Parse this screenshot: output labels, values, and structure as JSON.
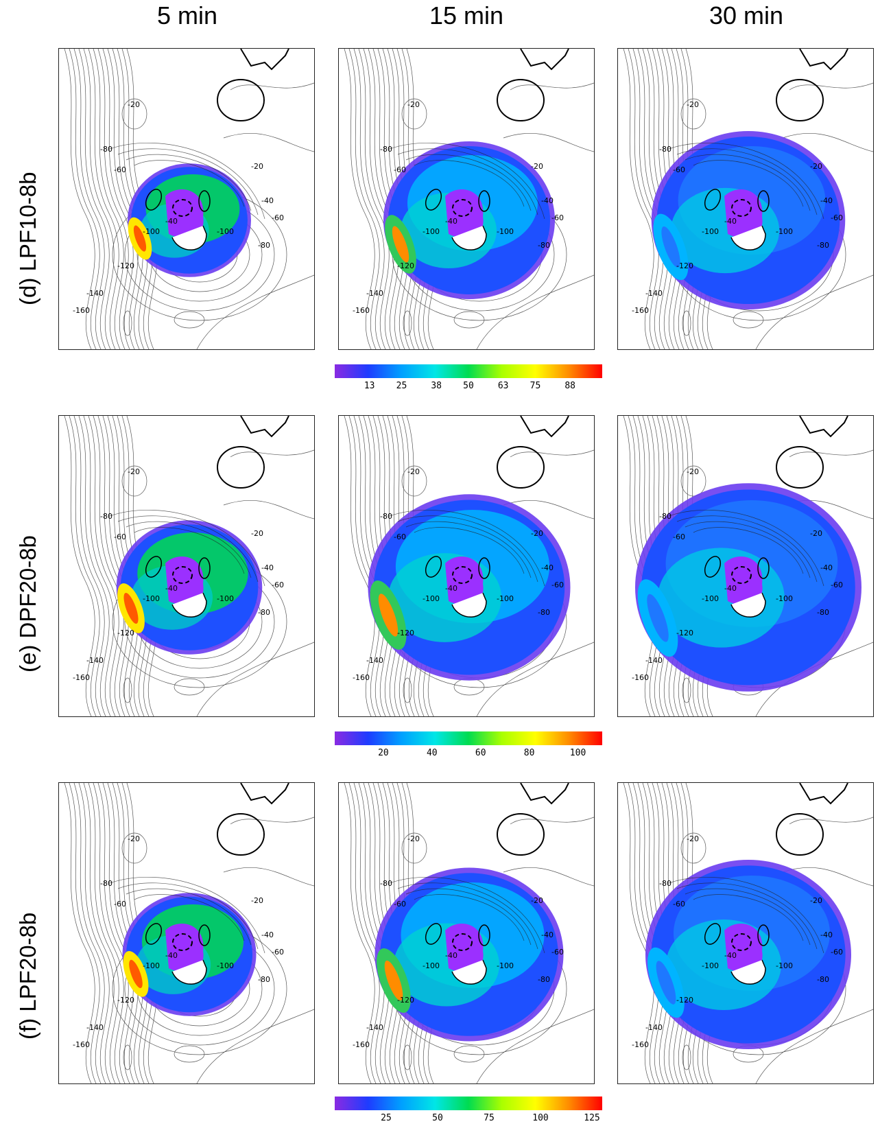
{
  "columns": [
    "5 min",
    "15 min",
    "30 min"
  ],
  "rows": [
    {
      "label": "(d) LPF10-8b",
      "colorbar": {
        "min": 0,
        "max": 100,
        "ticks": [
          "13",
          "25",
          "38",
          "50",
          "63",
          "75",
          "88"
        ]
      }
    },
    {
      "label": "(e) DPF20-8b",
      "colorbar": {
        "min": 0,
        "max": 110,
        "ticks": [
          "20",
          "40",
          "60",
          "80",
          "100"
        ]
      }
    },
    {
      "label": "(f) LPF20-8b",
      "colorbar": {
        "min": 0,
        "max": 130,
        "ticks": [
          "25",
          "50",
          "75",
          "100",
          "125"
        ]
      }
    }
  ],
  "contour_labels": [
    "-20",
    "-40",
    "-60",
    "-80",
    "-100",
    "-120",
    "-140",
    "-160"
  ],
  "colormap": [
    "#8a2be2",
    "#1e3cff",
    "#00a0ff",
    "#00e6e6",
    "#00dc50",
    "#aaff00",
    "#ffff00",
    "#ff8c00",
    "#ff0000"
  ]
}
